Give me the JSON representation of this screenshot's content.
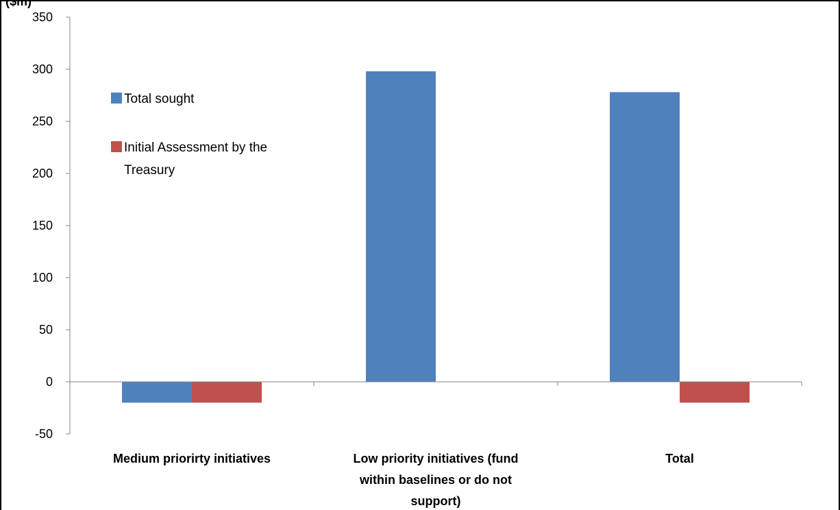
{
  "chart_data": {
    "type": "bar",
    "ylabel": "($m)",
    "xlabel": "",
    "ylim": [
      -50,
      350
    ],
    "yticks": [
      -50,
      0,
      50,
      100,
      150,
      200,
      250,
      300,
      350
    ],
    "grid": false,
    "legend_position": "top-left",
    "categories": [
      [
        "Medium priorirty initiatives"
      ],
      [
        "Low priority initiatives (fund",
        "within baselines  or do not",
        "support)"
      ],
      [
        "Total"
      ]
    ],
    "series": [
      {
        "name": "Total sought",
        "color": "#4F81BD",
        "values": [
          -20,
          298,
          278
        ]
      },
      {
        "name": "Initial Assessment by the Treasury",
        "name_lines": [
          "Initial Assessment by the",
          "Treasury"
        ],
        "color": "#C0504D",
        "values": [
          -20,
          0,
          -20
        ]
      }
    ]
  }
}
